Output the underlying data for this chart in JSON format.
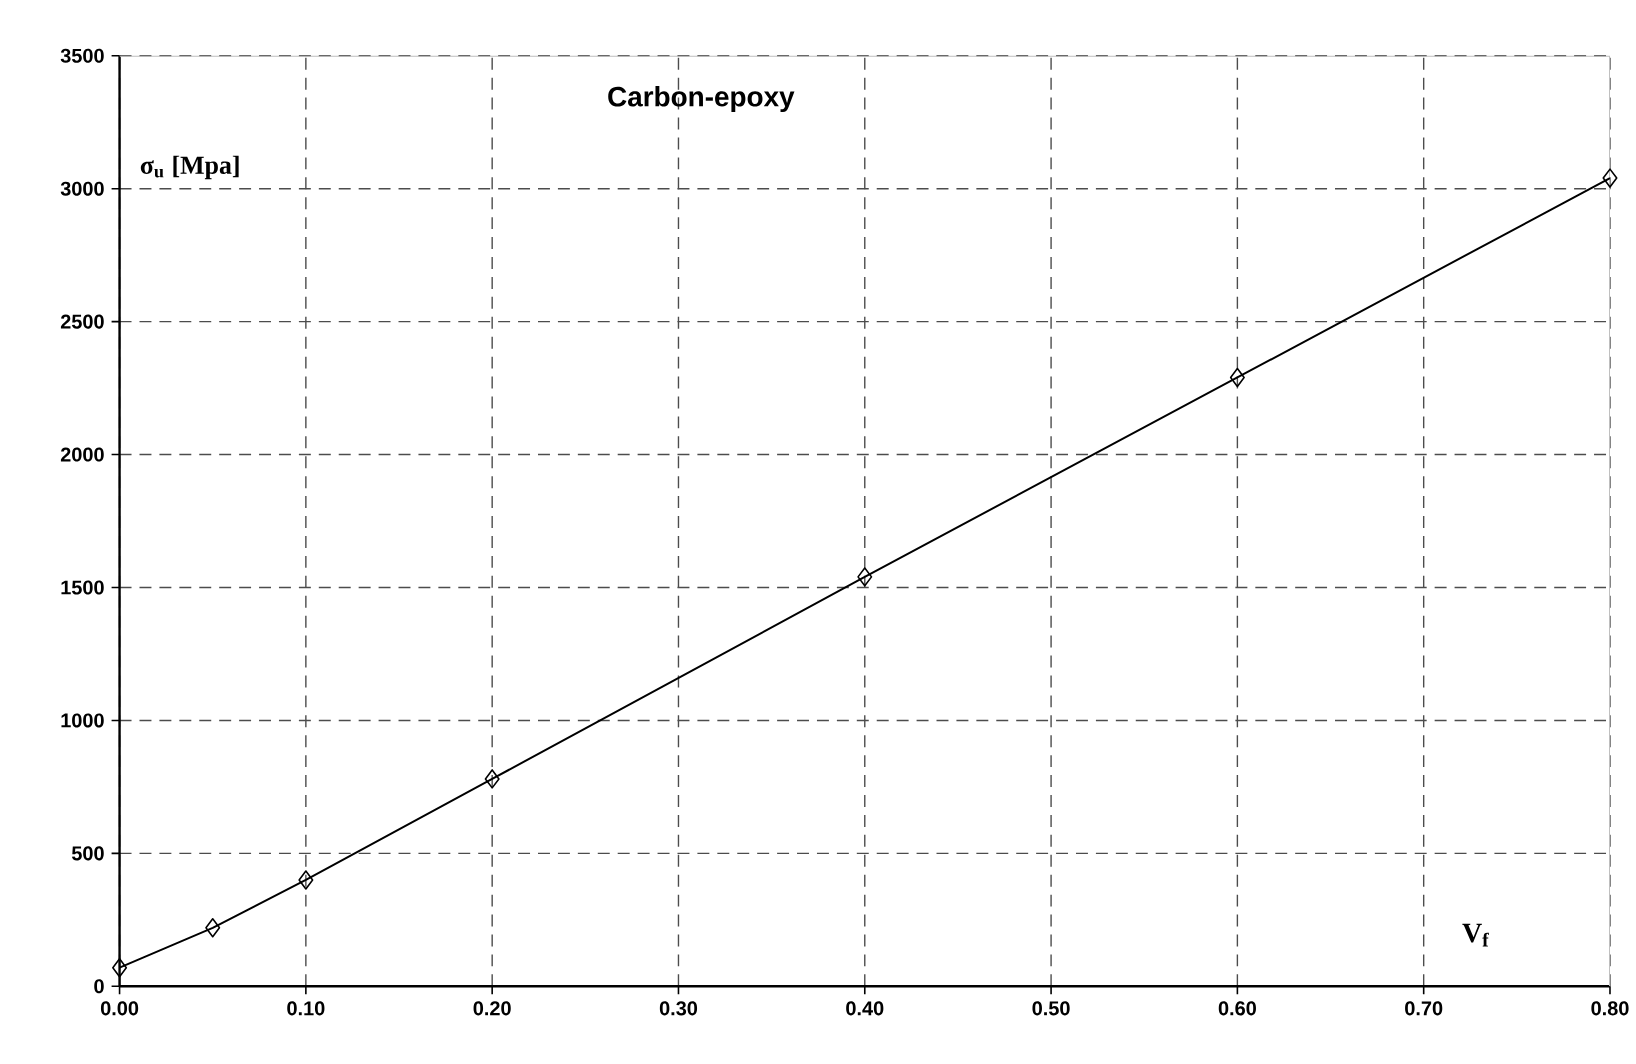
{
  "chart_data": {
    "type": "line",
    "title": "Carbon-epoxy",
    "xlabel": "V$_{f}$",
    "ylabel": "σ$_{u}$ [Mpa]",
    "x": [
      0.0,
      0.05,
      0.1,
      0.2,
      0.4,
      0.6,
      0.8
    ],
    "series": [
      {
        "color": "#000000",
        "values": [
          70,
          220,
          400,
          780,
          1540,
          2290,
          3040
        ]
      }
    ],
    "xlim": [
      0,
      0.8
    ],
    "ylim": [
      0,
      3500
    ],
    "xticks": [
      {
        "value": 0,
        "label": "0.00"
      },
      {
        "value": 0.1,
        "label": "0.10"
      },
      {
        "value": 0.2,
        "label": "0.20"
      },
      {
        "value": 0.3,
        "label": "0.30"
      },
      {
        "value": 0.4,
        "label": "0.40"
      },
      {
        "value": 0.5,
        "label": "0.50"
      },
      {
        "value": 0.6,
        "label": "0.60"
      },
      {
        "value": 0.7,
        "label": "0.70"
      },
      {
        "value": 0.8,
        "label": "0.80"
      }
    ],
    "yticks": [
      0,
      500,
      1000,
      1500,
      2000,
      2500,
      3000,
      3500
    ],
    "grid": true,
    "marker": "diamond",
    "line_style": "solid"
  }
}
